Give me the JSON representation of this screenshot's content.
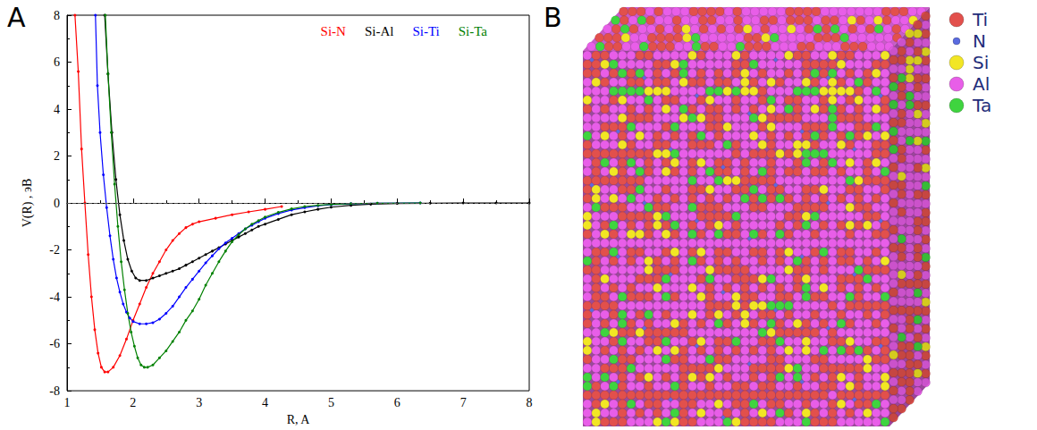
{
  "chart_data": {
    "type": "line",
    "panel_label": "A",
    "x_label": "R, A",
    "y_label": "V(R) , эВ",
    "xlim": [
      1,
      8
    ],
    "xticks": [
      1,
      2,
      3,
      4,
      5,
      6,
      7,
      8
    ],
    "ylim": [
      -8,
      8
    ],
    "yticks": [
      -8,
      -6,
      -4,
      -2,
      0,
      2,
      4,
      6,
      8
    ],
    "grid": false,
    "legend": "top-right",
    "marker": "circle",
    "reference_lines": [
      {
        "y": 0,
        "line_style": "dashed"
      }
    ],
    "series": [
      {
        "name": "Si-N",
        "color": "#ff0000",
        "x": [
          1.12,
          1.17,
          1.22,
          1.27,
          1.32,
          1.37,
          1.42,
          1.47,
          1.52,
          1.57,
          1.62,
          1.7,
          1.8,
          1.9,
          2.0,
          2.1,
          2.2,
          2.3,
          2.4,
          2.5,
          2.6,
          2.7,
          2.8,
          2.9,
          3.0,
          3.25,
          3.5,
          3.75,
          4.0,
          4.25
        ],
        "values": [
          8.0,
          5.6,
          2.3,
          0.0,
          -2.2,
          -4.0,
          -5.4,
          -6.4,
          -7.0,
          -7.2,
          -7.2,
          -7.0,
          -6.5,
          -5.8,
          -5.0,
          -4.3,
          -3.6,
          -3.0,
          -2.5,
          -2.0,
          -1.6,
          -1.3,
          -1.05,
          -0.9,
          -0.8,
          -0.65,
          -0.5,
          -0.38,
          -0.27,
          -0.15
        ]
      },
      {
        "name": "Si-Al",
        "color": "#000000",
        "x": [
          1.57,
          1.62,
          1.68,
          1.74,
          1.8,
          1.86,
          1.92,
          1.98,
          2.04,
          2.1,
          2.2,
          2.3,
          2.4,
          2.5,
          2.6,
          2.7,
          2.8,
          2.9,
          3.0,
          3.1,
          3.2,
          3.3,
          3.4,
          3.5,
          3.6,
          3.7,
          3.8,
          3.9,
          4.0,
          4.2,
          4.4,
          4.6,
          4.8,
          5.0,
          5.3,
          5.6,
          6.0,
          6.5,
          7.0,
          7.5,
          8.0
        ],
        "values": [
          8.0,
          5.5,
          3.0,
          1.0,
          -0.5,
          -1.6,
          -2.4,
          -2.9,
          -3.2,
          -3.3,
          -3.3,
          -3.2,
          -3.1,
          -3.0,
          -2.9,
          -2.8,
          -2.65,
          -2.5,
          -2.35,
          -2.2,
          -2.05,
          -1.9,
          -1.75,
          -1.6,
          -1.45,
          -1.3,
          -1.15,
          -1.0,
          -0.9,
          -0.7,
          -0.5,
          -0.38,
          -0.27,
          -0.18,
          -0.1,
          -0.05,
          -0.02,
          -0.01,
          0,
          0,
          0
        ]
      },
      {
        "name": "Si-Ti",
        "color": "#0000ff",
        "x": [
          1.43,
          1.46,
          1.5,
          1.55,
          1.6,
          1.65,
          1.7,
          1.75,
          1.8,
          1.85,
          1.9,
          1.95,
          2.0,
          2.1,
          2.2,
          2.3,
          2.4,
          2.5,
          2.6,
          2.7,
          2.8,
          2.9,
          3.0,
          3.1,
          3.2,
          3.3,
          3.4,
          3.5,
          3.6,
          3.7,
          3.8,
          3.9,
          4.0,
          4.2,
          4.4,
          4.6,
          4.8,
          5.0,
          5.3,
          5.7,
          6.35
        ],
        "values": [
          8.0,
          5.0,
          3.0,
          1.2,
          -0.2,
          -1.4,
          -2.4,
          -3.2,
          -3.8,
          -4.3,
          -4.65,
          -4.9,
          -5.05,
          -5.15,
          -5.15,
          -5.1,
          -4.95,
          -4.7,
          -4.4,
          -4.0,
          -3.6,
          -3.25,
          -2.9,
          -2.55,
          -2.25,
          -1.95,
          -1.7,
          -1.5,
          -1.3,
          -1.1,
          -0.95,
          -0.8,
          -0.65,
          -0.45,
          -0.3,
          -0.2,
          -0.12,
          -0.07,
          -0.03,
          -0.01,
          0
        ]
      },
      {
        "name": "Si-Ta",
        "color": "#008000",
        "x": [
          1.58,
          1.62,
          1.67,
          1.72,
          1.77,
          1.82,
          1.87,
          1.92,
          1.97,
          2.02,
          2.07,
          2.12,
          2.17,
          2.22,
          2.3,
          2.4,
          2.5,
          2.6,
          2.7,
          2.8,
          2.9,
          3.0,
          3.1,
          3.2,
          3.3,
          3.4,
          3.5,
          3.6,
          3.7,
          3.8,
          3.9,
          4.0,
          4.2,
          4.4,
          4.6,
          4.8,
          5.0,
          5.3,
          5.7,
          6.35
        ],
        "values": [
          8.0,
          5.5,
          3.0,
          0.8,
          -1.0,
          -2.5,
          -3.7,
          -4.7,
          -5.5,
          -6.1,
          -6.6,
          -6.9,
          -7.0,
          -7.0,
          -6.9,
          -6.6,
          -6.3,
          -5.9,
          -5.5,
          -5.0,
          -4.6,
          -4.1,
          -3.5,
          -3.0,
          -2.5,
          -2.05,
          -1.65,
          -1.35,
          -1.1,
          -0.9,
          -0.75,
          -0.6,
          -0.4,
          -0.25,
          -0.15,
          -0.1,
          -0.06,
          -0.03,
          -0.01,
          0
        ]
      }
    ]
  },
  "structure": {
    "panel_label": "B",
    "legend": [
      {
        "label": "Ti",
        "color": "#e2504c"
      },
      {
        "label": "N",
        "color": "#5a6be0"
      },
      {
        "label": "Si",
        "color": "#f2e624"
      },
      {
        "label": "Al",
        "color": "#e85ee8"
      },
      {
        "label": "Ta",
        "color": "#3fd43f"
      }
    ]
  }
}
